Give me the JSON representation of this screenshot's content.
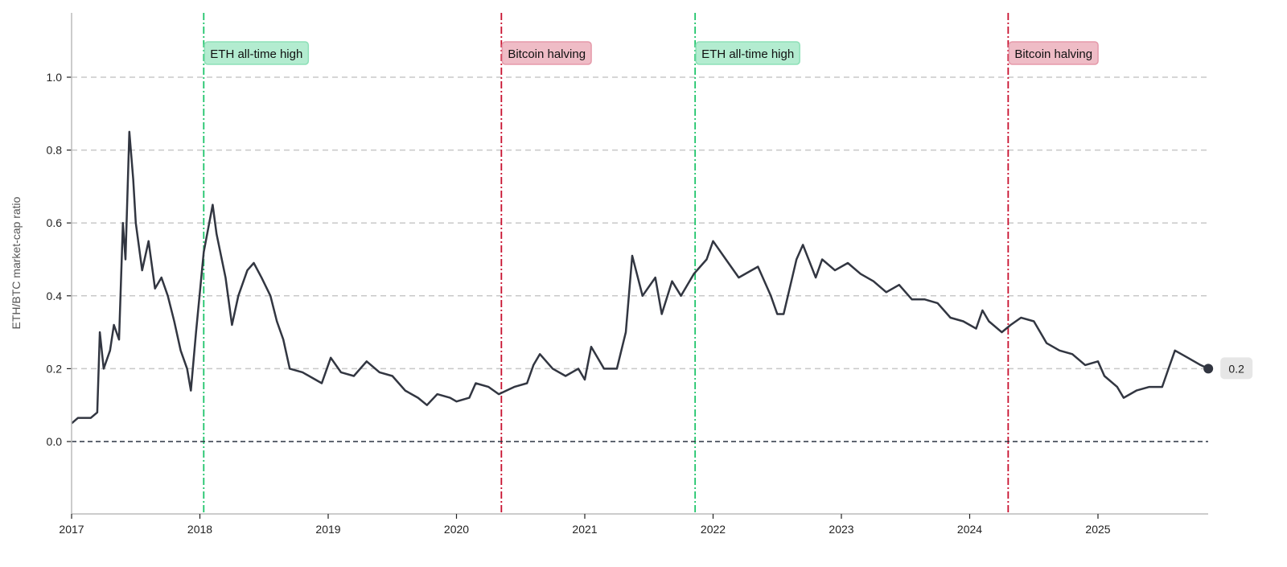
{
  "chart_data": {
    "type": "line",
    "title": "",
    "xlabel": "",
    "ylabel": "ETH/BTC market-cap ratio",
    "xlim": [
      2017.0,
      2025.86
    ],
    "ylim": [
      -0.2,
      1.18
    ],
    "x_ticks": [
      "2017",
      "2018",
      "2019",
      "2020",
      "2021",
      "2022",
      "2023",
      "2024",
      "2025"
    ],
    "y_ticks": [
      "0.0",
      "0.2",
      "0.4",
      "0.6",
      "0.8",
      "1.0"
    ],
    "grid": "horizontal dashed",
    "zero_line": true,
    "line_color": "#323641",
    "end_label": "0.2",
    "events": [
      {
        "x": 2018.03,
        "label": "ETH all-time high",
        "color": "#1ec46a",
        "box_fill": "#b3ecd0",
        "box_stroke": "#8ee0b8"
      },
      {
        "x": 2020.35,
        "label": "Bitcoin halving",
        "color": "#c8102e",
        "box_fill": "#efbcc6",
        "box_stroke": "#e59aaa"
      },
      {
        "x": 2021.86,
        "label": "ETH all-time high",
        "color": "#1ec46a",
        "box_fill": "#b3ecd0",
        "box_stroke": "#8ee0b8"
      },
      {
        "x": 2024.3,
        "label": "Bitcoin halving",
        "color": "#c8102e",
        "box_fill": "#efbcc6",
        "box_stroke": "#e59aaa"
      }
    ],
    "series": [
      {
        "x": [
          2017.0,
          2017.05,
          2017.15,
          2017.2,
          2017.22,
          2017.25,
          2017.3,
          2017.33,
          2017.37,
          2017.4,
          2017.42,
          2017.45,
          2017.48,
          2017.5,
          2017.55,
          2017.6,
          2017.65,
          2017.7,
          2017.75,
          2017.8,
          2017.85,
          2017.9,
          2017.93,
          2017.97,
          2018.03,
          2018.1,
          2018.13,
          2018.2,
          2018.25,
          2018.3,
          2018.37,
          2018.42,
          2018.48,
          2018.55,
          2018.6,
          2018.65,
          2018.7,
          2018.8,
          2018.9,
          2018.95,
          2019.02,
          2019.1,
          2019.2,
          2019.3,
          2019.4,
          2019.5,
          2019.6,
          2019.7,
          2019.77,
          2019.85,
          2019.95,
          2020.0,
          2020.1,
          2020.15,
          2020.25,
          2020.33,
          2020.45,
          2020.55,
          2020.6,
          2020.65,
          2020.75,
          2020.85,
          2020.95,
          2021.0,
          2021.05,
          2021.15,
          2021.25,
          2021.32,
          2021.37,
          2021.45,
          2021.55,
          2021.6,
          2021.68,
          2021.75,
          2021.85,
          2021.95,
          2022.0,
          2022.1,
          2022.2,
          2022.3,
          2022.35,
          2022.45,
          2022.5,
          2022.55,
          2022.65,
          2022.7,
          2022.8,
          2022.85,
          2022.95,
          2023.05,
          2023.15,
          2023.25,
          2023.35,
          2023.45,
          2023.55,
          2023.65,
          2023.75,
          2023.85,
          2023.95,
          2024.0,
          2024.05,
          2024.1,
          2024.15,
          2024.25,
          2024.32,
          2024.4,
          2024.5,
          2024.6,
          2024.7,
          2024.8,
          2024.9,
          2025.0,
          2025.05,
          2025.15,
          2025.2,
          2025.3,
          2025.4,
          2025.5,
          2025.55,
          2025.6,
          2025.7,
          2025.8,
          2025.86
        ],
        "y": [
          0.05,
          0.065,
          0.065,
          0.08,
          0.3,
          0.2,
          0.25,
          0.32,
          0.28,
          0.6,
          0.5,
          0.85,
          0.72,
          0.6,
          0.47,
          0.55,
          0.42,
          0.45,
          0.4,
          0.33,
          0.25,
          0.2,
          0.14,
          0.3,
          0.52,
          0.65,
          0.57,
          0.45,
          0.32,
          0.4,
          0.47,
          0.49,
          0.45,
          0.4,
          0.33,
          0.28,
          0.2,
          0.19,
          0.17,
          0.16,
          0.23,
          0.19,
          0.18,
          0.22,
          0.19,
          0.18,
          0.14,
          0.12,
          0.1,
          0.13,
          0.12,
          0.11,
          0.12,
          0.16,
          0.15,
          0.13,
          0.15,
          0.16,
          0.21,
          0.24,
          0.2,
          0.18,
          0.2,
          0.17,
          0.26,
          0.2,
          0.2,
          0.3,
          0.51,
          0.4,
          0.45,
          0.35,
          0.44,
          0.4,
          0.46,
          0.5,
          0.55,
          0.5,
          0.45,
          0.47,
          0.48,
          0.4,
          0.35,
          0.35,
          0.5,
          0.54,
          0.45,
          0.5,
          0.47,
          0.49,
          0.46,
          0.44,
          0.41,
          0.43,
          0.39,
          0.39,
          0.38,
          0.34,
          0.33,
          0.32,
          0.31,
          0.36,
          0.33,
          0.3,
          0.32,
          0.34,
          0.33,
          0.27,
          0.25,
          0.24,
          0.21,
          0.22,
          0.18,
          0.15,
          0.12,
          0.14,
          0.15,
          0.15,
          0.2,
          0.25,
          0.23,
          0.21,
          0.2
        ]
      }
    ]
  }
}
